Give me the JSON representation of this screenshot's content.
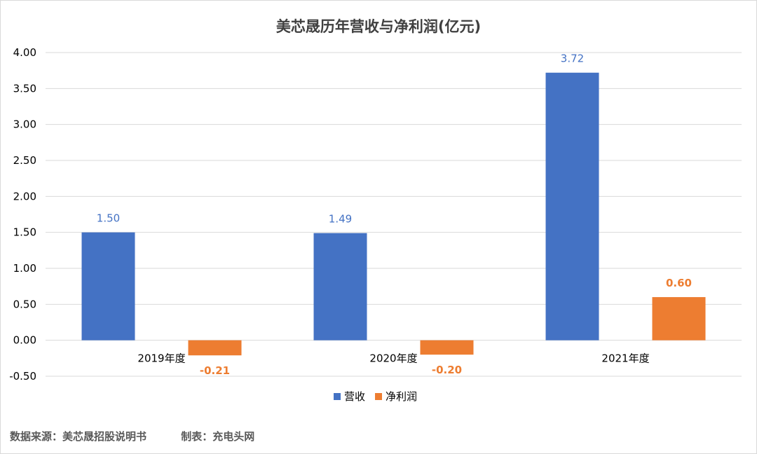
{
  "chart_data": {
    "type": "bar",
    "title": "美芯晟历年营收与净利润(亿元)",
    "categories": [
      "2019年度",
      "2020年度",
      "2021年度"
    ],
    "series": [
      {
        "name": "营收",
        "values": [
          1.5,
          1.49,
          3.72
        ],
        "labels": [
          "1.50",
          "1.49",
          "3.72"
        ],
        "color": "#4472C4"
      },
      {
        "name": "净利润",
        "values": [
          -0.21,
          -0.2,
          0.6
        ],
        "labels": [
          "-0.21",
          "-0.20",
          "0.60"
        ],
        "color": "#ED7D31"
      }
    ],
    "y_ticks": [
      "4.00",
      "3.50",
      "3.00",
      "2.50",
      "2.00",
      "1.50",
      "1.00",
      "0.50",
      "0.00",
      "-0.50"
    ],
    "ylim": [
      -0.5,
      4.0
    ],
    "grid": true,
    "legend_position": "bottom"
  },
  "footer": {
    "source": "数据来源：美芯晟招股说明书",
    "credit": "制表：充电头网"
  }
}
